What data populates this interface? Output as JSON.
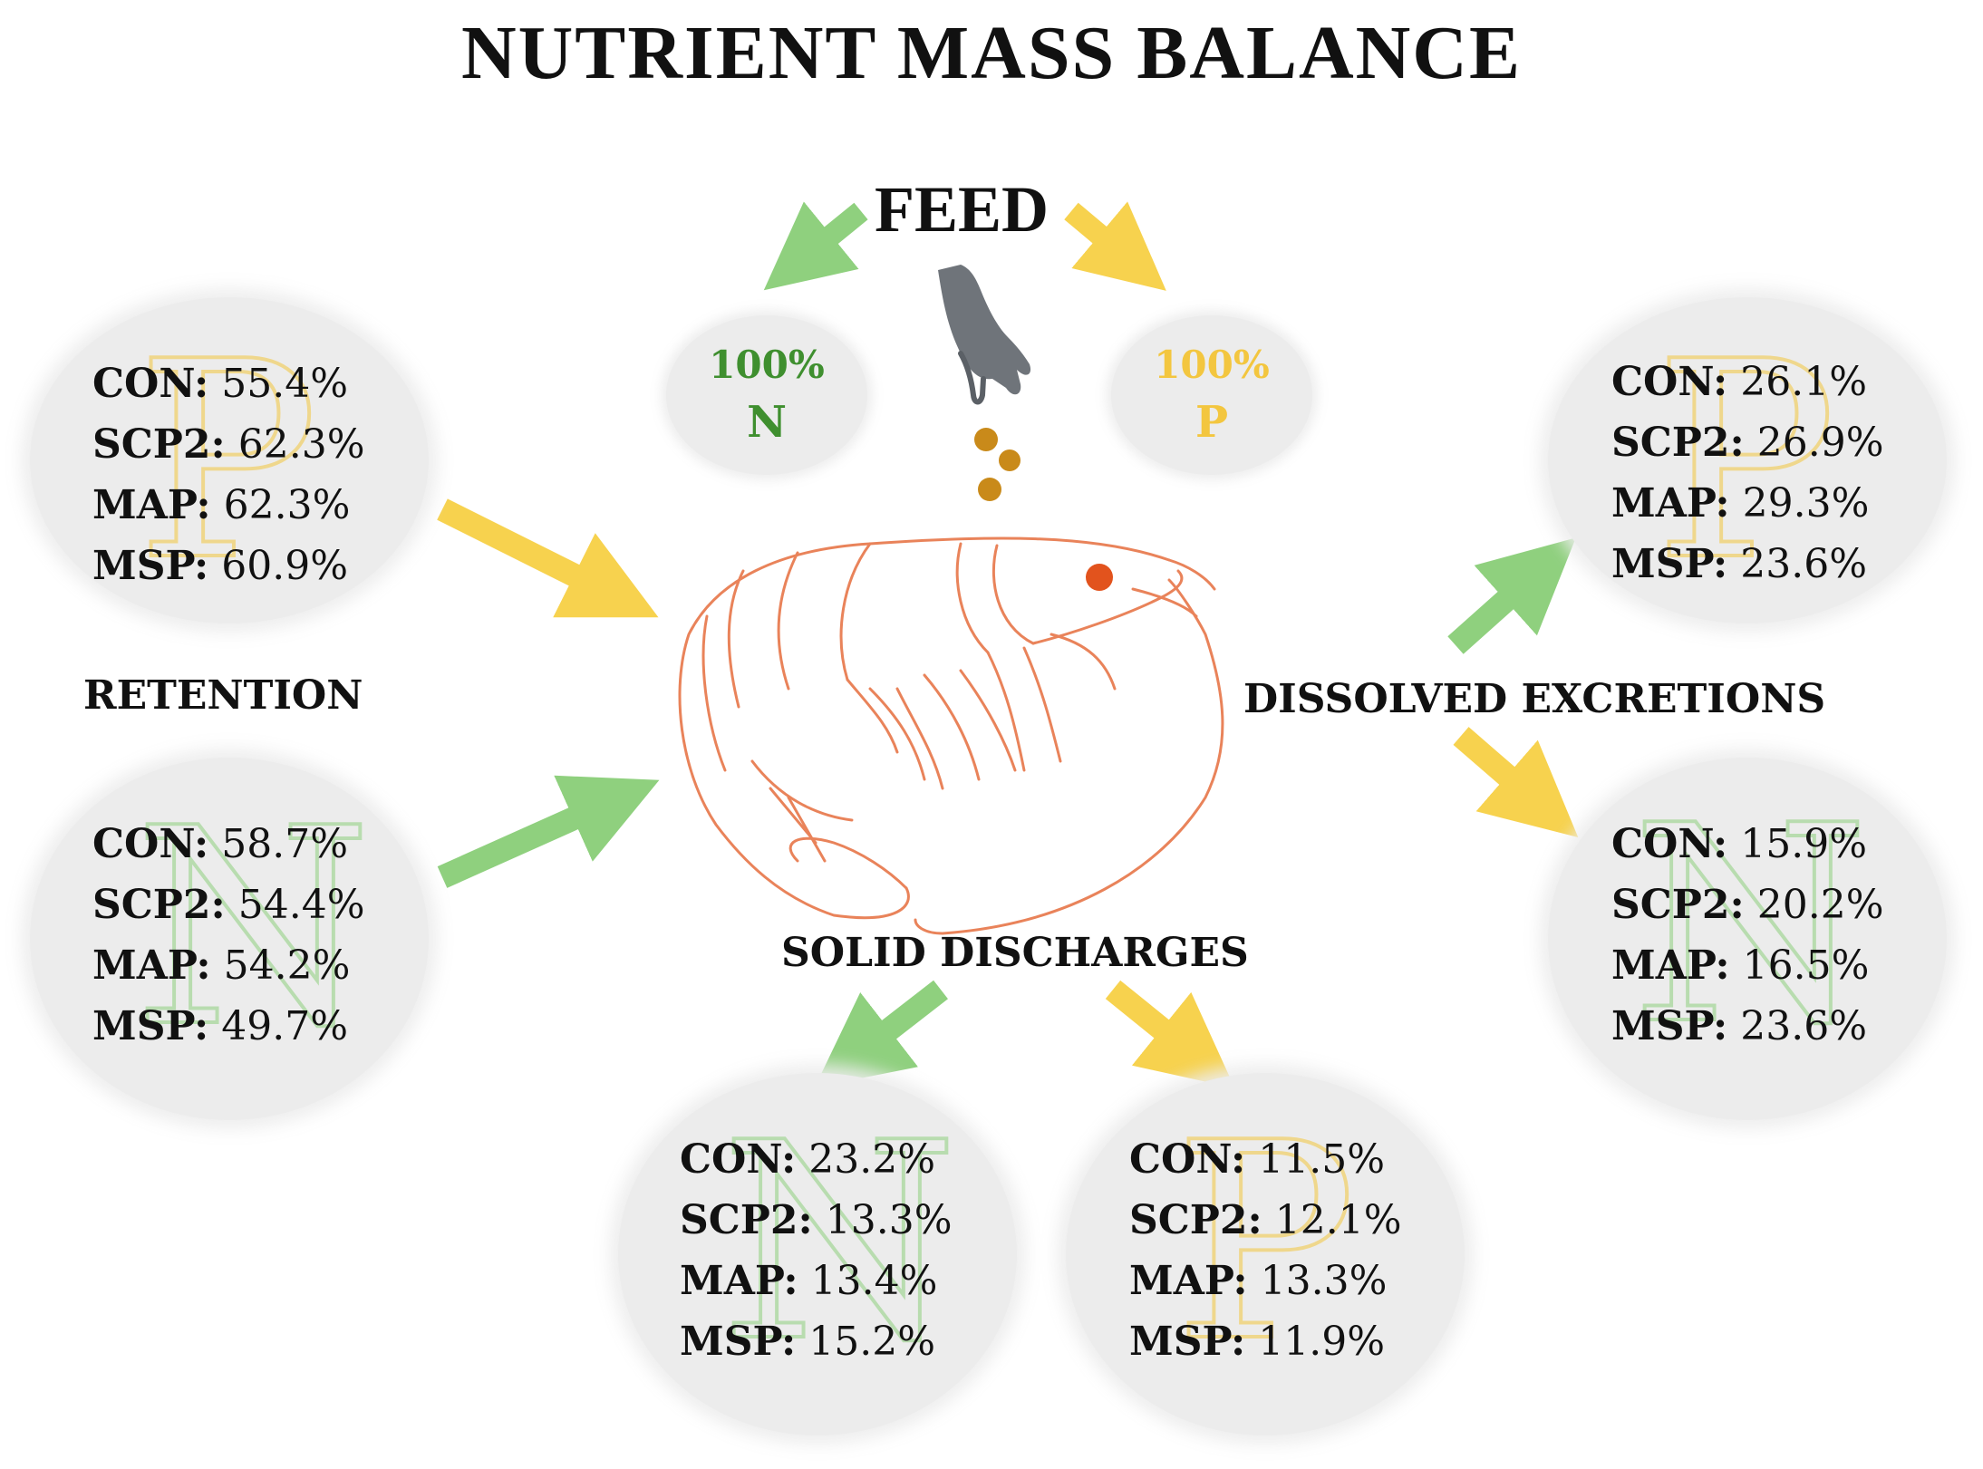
{
  "title": "NUTRIENT MASS BALANCE",
  "feed": {
    "label": "FEED",
    "n": {
      "percent": "100%",
      "element": "N",
      "color": "#3f8f2f"
    },
    "p": {
      "percent": "100%",
      "element": "P",
      "color": "#f3c63f"
    }
  },
  "colors": {
    "green_arrow": "#8fd07e",
    "yellow_arrow": "#f7d24e",
    "shrimp": "#e9835a",
    "pellet": "#c98a1a"
  },
  "labels": {
    "retention": "RETENTION",
    "dissolved": "DISSOLVED EXCRETIONS",
    "solid": "SOLID DISCHARGES"
  },
  "retention_p": {
    "letter": "P",
    "rows": [
      {
        "key": "CON:",
        "value": "55.4%"
      },
      {
        "key": "SCP2:",
        "value": "62.3%"
      },
      {
        "key": "MAP:",
        "value": "62.3%"
      },
      {
        "key": "MSP:",
        "value": "60.9%"
      }
    ]
  },
  "retention_n": {
    "letter": "N",
    "rows": [
      {
        "key": "CON:",
        "value": "58.7%"
      },
      {
        "key": "SCP2:",
        "value": "54.4%"
      },
      {
        "key": "MAP:",
        "value": "54.2%"
      },
      {
        "key": "MSP:",
        "value": "49.7%"
      }
    ]
  },
  "dissolved_p": {
    "letter": "P",
    "rows": [
      {
        "key": "CON:",
        "value": "26.1%"
      },
      {
        "key": "SCP2:",
        "value": "26.9%"
      },
      {
        "key": "MAP:",
        "value": "29.3%"
      },
      {
        "key": "MSP:",
        "value": "23.6%"
      }
    ]
  },
  "dissolved_n": {
    "letter": "N",
    "rows": [
      {
        "key": "CON:",
        "value": "15.9%"
      },
      {
        "key": "SCP2:",
        "value": "20.2%"
      },
      {
        "key": "MAP:",
        "value": "16.5%"
      },
      {
        "key": "MSP:",
        "value": "23.6%"
      }
    ]
  },
  "solid_n": {
    "letter": "N",
    "rows": [
      {
        "key": "CON:",
        "value": "23.2%"
      },
      {
        "key": "SCP2:",
        "value": "13.3%"
      },
      {
        "key": "MAP:",
        "value": "13.4%"
      },
      {
        "key": "MSP:",
        "value": "15.2%"
      }
    ]
  },
  "solid_p": {
    "letter": "P",
    "rows": [
      {
        "key": "CON:",
        "value": "11.5%"
      },
      {
        "key": "SCP2:",
        "value": "12.1%"
      },
      {
        "key": "MAP:",
        "value": "13.3%"
      },
      {
        "key": "MSP:",
        "value": "11.9%"
      }
    ]
  }
}
